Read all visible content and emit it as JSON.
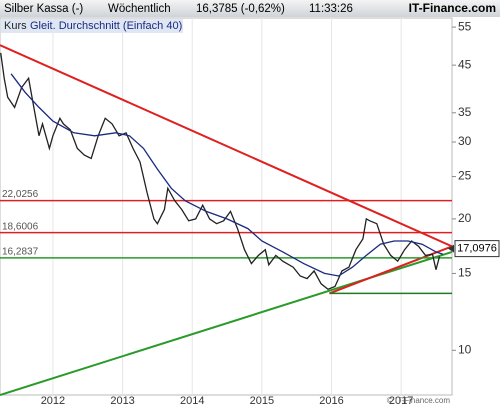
{
  "header": {
    "title": "Silber Kassa (-)",
    "period": "Wöchentlich",
    "quote": "16,3785 (-0,62%)",
    "time": "11:33:26",
    "brand": "IT-Finance.com"
  },
  "footer": "© IT-Finance.com",
  "chart_data": {
    "type": "line",
    "log_scale": true,
    "xlim": [
      2011.24,
      2017.73
    ],
    "xticks": [
      2012,
      2013,
      2014,
      2015,
      2016,
      2017
    ],
    "ylim": [
      7.9,
      57.7
    ],
    "yticks": [
      10,
      15,
      20,
      25,
      30,
      35,
      45,
      55
    ],
    "series": [
      {
        "name": "Kurs",
        "color": "#222222",
        "x": [
          2011.25,
          2011.3,
          2011.35,
          2011.45,
          2011.55,
          2011.65,
          2011.7,
          2011.8,
          2011.85,
          2011.95,
          2012.0,
          2012.1,
          2012.15,
          2012.25,
          2012.35,
          2012.45,
          2012.55,
          2012.65,
          2012.75,
          2012.85,
          2012.95,
          2013.05,
          2013.15,
          2013.25,
          2013.35,
          2013.45,
          2013.5,
          2013.6,
          2013.65,
          2013.75,
          2013.85,
          2013.95,
          2014.05,
          2014.15,
          2014.25,
          2014.35,
          2014.45,
          2014.55,
          2014.65,
          2014.75,
          2014.85,
          2014.95,
          2015.05,
          2015.1,
          2015.2,
          2015.3,
          2015.45,
          2015.55,
          2015.65,
          2015.75,
          2015.85,
          2015.95,
          2016.05,
          2016.15,
          2016.25,
          2016.35,
          2016.45,
          2016.5,
          2016.55,
          2016.65,
          2016.75,
          2016.85,
          2016.95,
          2017.05,
          2017.15,
          2017.25,
          2017.35,
          2017.45,
          2017.5,
          2017.55
        ],
        "values": [
          48,
          42,
          38,
          36,
          40,
          42,
          38,
          31,
          33,
          29,
          31,
          34,
          33,
          32,
          29,
          28,
          27.5,
          31,
          34,
          33,
          31,
          31.5,
          29,
          27,
          23,
          20,
          19.5,
          21,
          23.5,
          22,
          21,
          19.8,
          20,
          21.5,
          20,
          19.5,
          19.8,
          20.8,
          19,
          17,
          15.8,
          16.5,
          17,
          15.7,
          16.5,
          16,
          15.5,
          14.8,
          14.6,
          15.2,
          14.2,
          13.8,
          14,
          15.2,
          15.5,
          17,
          18,
          20,
          19.8,
          19.5,
          17.5,
          16.5,
          16,
          17,
          17.8,
          17.3,
          16.5,
          16.6,
          15.3,
          16.4
        ]
      },
      {
        "name": "Gleit. Durchschnitt (Einfach 40)",
        "color": "#1a2a80",
        "x": [
          2011.4,
          2011.6,
          2011.8,
          2012.0,
          2012.3,
          2012.6,
          2012.9,
          2013.1,
          2013.3,
          2013.5,
          2013.7,
          2013.9,
          2014.2,
          2014.5,
          2014.8,
          2015.0,
          2015.3,
          2015.6,
          2015.9,
          2016.1,
          2016.3,
          2016.5,
          2016.7,
          2016.9,
          2017.1,
          2017.3,
          2017.5,
          2017.6
        ],
        "values": [
          43,
          39,
          36,
          33.5,
          31.5,
          31,
          31.5,
          31,
          29,
          26,
          23.5,
          22,
          20.8,
          20,
          19,
          17.8,
          16.8,
          15.8,
          15,
          14.8,
          15.5,
          16.5,
          17.5,
          17.8,
          17.8,
          17.5,
          16.8,
          16.6
        ]
      }
    ],
    "levels": [
      {
        "value": 22.0256,
        "label": "22,0256",
        "color": "#e02020"
      },
      {
        "value": 18.6006,
        "label": "18,6006",
        "color": "#e02020"
      },
      {
        "value": 16.2837,
        "label": "16,2837",
        "color": "#2a9a2a"
      },
      {
        "value": 13.5,
        "color": "#1f7a1f"
      }
    ],
    "trendlines": [
      {
        "color": "#e02020",
        "x": [
          2011.24,
          2017.73
        ],
        "y": [
          50,
          17.3
        ]
      },
      {
        "color": "#2a9a2a",
        "x": [
          2011.24,
          2017.73
        ],
        "y": [
          7.9,
          16.8
        ]
      },
      {
        "color": "#e02020",
        "x": [
          2015.97,
          2017.73
        ],
        "y": [
          13.5,
          17.3
        ]
      }
    ],
    "last": {
      "value": 17.0976,
      "label": "17,0976"
    }
  }
}
